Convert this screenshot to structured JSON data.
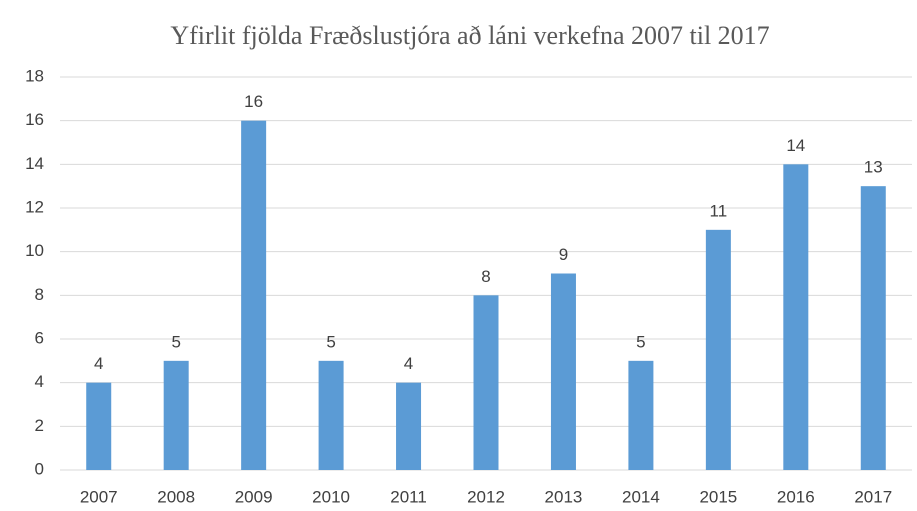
{
  "chart_data": {
    "type": "bar",
    "title": "Yfirlit fjölda Fræðslustjóra að láni verkefna 2007 til 2017",
    "categories": [
      "2007",
      "2008",
      "2009",
      "2010",
      "2011",
      "2012",
      "2013",
      "2014",
      "2015",
      "2016",
      "2017"
    ],
    "values": [
      4,
      5,
      16,
      5,
      4,
      8,
      9,
      5,
      11,
      14,
      13
    ],
    "color": "#5b9bd5",
    "ylim": [
      0,
      18
    ],
    "yticks": [
      0,
      2,
      4,
      6,
      8,
      10,
      12,
      14,
      16,
      18
    ],
    "grid": true
  }
}
